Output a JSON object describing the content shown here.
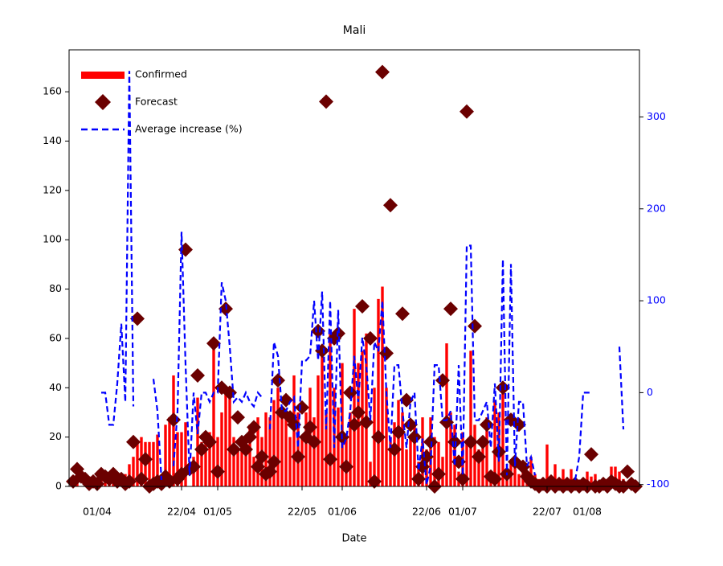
{
  "chart_data": {
    "type": "combo",
    "title": "Mali",
    "xlabel": "Date",
    "x": [
      "26/03",
      "27/03",
      "28/03",
      "29/03",
      "30/03",
      "31/03",
      "01/04",
      "02/04",
      "03/04",
      "04/04",
      "05/04",
      "06/04",
      "07/04",
      "08/04",
      "09/04",
      "10/04",
      "11/04",
      "12/04",
      "13/04",
      "14/04",
      "15/04",
      "16/04",
      "17/04",
      "18/04",
      "19/04",
      "20/04",
      "21/04",
      "22/04",
      "23/04",
      "24/04",
      "25/04",
      "26/04",
      "27/04",
      "28/04",
      "29/04",
      "30/04",
      "01/05",
      "02/05",
      "03/05",
      "04/05",
      "05/05",
      "06/05",
      "07/05",
      "08/05",
      "09/05",
      "10/05",
      "11/05",
      "12/05",
      "13/05",
      "14/05",
      "15/05",
      "16/05",
      "17/05",
      "18/05",
      "19/05",
      "20/05",
      "21/05",
      "22/05",
      "23/05",
      "24/05",
      "25/05",
      "26/05",
      "27/05",
      "28/05",
      "29/05",
      "30/05",
      "31/05",
      "01/06",
      "02/06",
      "03/06",
      "04/06",
      "05/06",
      "06/06",
      "07/06",
      "08/06",
      "09/06",
      "10/06",
      "11/06",
      "12/06",
      "13/06",
      "14/06",
      "15/06",
      "16/06",
      "17/06",
      "18/06",
      "19/06",
      "20/06",
      "21/06",
      "22/06",
      "23/06",
      "24/06",
      "25/06",
      "26/06",
      "27/06",
      "28/06",
      "29/06",
      "30/06",
      "01/07",
      "02/07",
      "03/07",
      "04/07",
      "05/07",
      "06/07",
      "07/07",
      "08/07",
      "09/07",
      "10/07",
      "11/07",
      "12/07",
      "13/07",
      "14/07",
      "15/07",
      "16/07",
      "17/07",
      "18/07",
      "19/07",
      "20/07",
      "21/07",
      "22/07",
      "23/07",
      "24/07",
      "25/07",
      "26/07",
      "27/07",
      "28/07",
      "29/07",
      "30/07",
      "31/07",
      "01/08",
      "02/08",
      "03/08",
      "04/08",
      "05/08",
      "06/08",
      "07/08",
      "08/08",
      "09/08",
      "10/08",
      "11/08",
      "12/08",
      "13/08"
    ],
    "xticks": [
      "01/04",
      "22/04",
      "01/05",
      "22/05",
      "01/06",
      "22/06",
      "01/07",
      "22/07",
      "01/08"
    ],
    "ylim": [
      0,
      177
    ],
    "yticks": [
      0,
      20,
      40,
      60,
      80,
      100,
      120,
      140,
      160
    ],
    "y2lim": [
      -102,
      373
    ],
    "y2ticks": [
      -100,
      0,
      100,
      200,
      300
    ],
    "y2color": "#0000ff",
    "legend": "upper left",
    "series": [
      {
        "name": "Confirmed",
        "kind": "bar",
        "color": "#ff0000",
        "values": [
          2,
          2,
          0,
          2,
          4,
          4,
          0,
          3,
          3,
          2,
          2,
          2,
          3,
          5,
          9,
          12,
          18,
          20,
          18,
          18,
          18,
          21,
          0,
          25,
          28,
          45,
          22,
          22,
          26,
          0,
          12,
          36,
          18,
          20,
          22,
          56,
          20,
          30,
          40,
          40,
          20,
          15,
          18,
          20,
          25,
          12,
          28,
          20,
          30,
          28,
          35,
          40,
          28,
          30,
          20,
          45,
          30,
          20,
          30,
          40,
          28,
          45,
          55,
          30,
          62,
          40,
          32,
          50,
          20,
          30,
          72,
          50,
          55,
          62,
          10,
          40,
          76,
          81,
          40,
          20,
          26,
          35,
          30,
          15,
          20,
          25,
          10,
          28,
          15,
          28,
          20,
          18,
          12,
          58,
          30,
          25,
          6,
          22,
          18,
          55,
          25,
          15,
          20,
          28,
          6,
          35,
          30,
          40,
          5,
          10,
          10,
          5,
          8,
          3,
          12,
          5,
          3,
          2,
          17,
          0,
          9,
          0,
          7,
          3,
          7,
          0,
          0,
          2,
          6,
          4,
          5,
          0,
          0,
          3,
          8,
          8,
          6,
          3,
          2,
          3,
          0
        ]
      },
      {
        "name": "Forecast",
        "kind": "scatter",
        "color": "#6b0000",
        "values": [
          2,
          7,
          4,
          3,
          1,
          2,
          1,
          5,
          4,
          3,
          5,
          2,
          3,
          1,
          2,
          18,
          68,
          3,
          11,
          0,
          1,
          2,
          1,
          4,
          2,
          27,
          3,
          5,
          96,
          7,
          8,
          45,
          15,
          20,
          18,
          58,
          6,
          40,
          72,
          38,
          15,
          28,
          18,
          15,
          20,
          24,
          8,
          12,
          5,
          6,
          10,
          43,
          30,
          35,
          28,
          25,
          12,
          32,
          20,
          24,
          18,
          63,
          55,
          156,
          11,
          60,
          62,
          20,
          8,
          38,
          25,
          30,
          73,
          26,
          60,
          2,
          20,
          168,
          54,
          114,
          15,
          22,
          70,
          35,
          25,
          20,
          3,
          8,
          12,
          18,
          0,
          5,
          43,
          26,
          72,
          18,
          10,
          3,
          152,
          18,
          65,
          12,
          18,
          25,
          4,
          3,
          14,
          40,
          5,
          27,
          10,
          25,
          8,
          4,
          2,
          1,
          0,
          1,
          0,
          2,
          0,
          1,
          0,
          1,
          0,
          1,
          0,
          1,
          0,
          13,
          0,
          0,
          1,
          0,
          2,
          1,
          0,
          0,
          6,
          1,
          0
        ]
      },
      {
        "name": "Average increase (%)",
        "kind": "line",
        "axis": "y2",
        "color": "#0000ff",
        "values": [
          null,
          null,
          0,
          null,
          null,
          null,
          null,
          0,
          0,
          -35,
          -35,
          10,
          75,
          -10,
          350,
          -15,
          null,
          null,
          null,
          null,
          15,
          -20,
          -95,
          null,
          null,
          -80,
          -20,
          175,
          30,
          -90,
          0,
          -45,
          0,
          0,
          -10,
          0,
          0,
          120,
          100,
          50,
          -10,
          -5,
          -10,
          0,
          -10,
          -15,
          0,
          -5,
          null,
          -40,
          55,
          40,
          -20,
          -20,
          -10,
          -5,
          -60,
          35,
          35,
          40,
          100,
          35,
          110,
          -40,
          100,
          -60,
          90,
          -60,
          -50,
          -20,
          40,
          -10,
          60,
          30,
          -30,
          55,
          45,
          100,
          0,
          -60,
          30,
          30,
          -20,
          -60,
          -10,
          0,
          -85,
          -50,
          -100,
          -80,
          30,
          30,
          -30,
          -30,
          -20,
          -80,
          30,
          -90,
          160,
          160,
          -30,
          -30,
          -20,
          -10,
          -60,
          10,
          -75,
          145,
          -90,
          140,
          -80,
          -10,
          -10,
          -80,
          -70,
          -90,
          null,
          null,
          null,
          null,
          null,
          null,
          null,
          null,
          null,
          -95,
          -70,
          0,
          0,
          0,
          null,
          null,
          null,
          null,
          null,
          null,
          50,
          -40,
          null,
          null,
          null
        ]
      }
    ]
  }
}
